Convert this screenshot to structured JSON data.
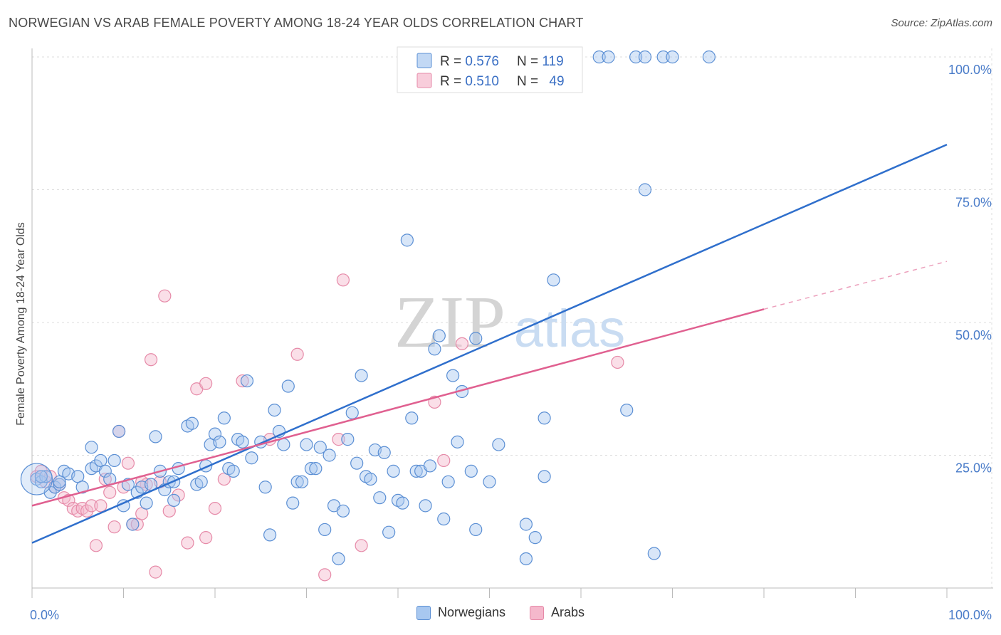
{
  "title": "NORWEGIAN VS ARAB FEMALE POVERTY AMONG 18-24 YEAR OLDS CORRELATION CHART",
  "source": "Source: ZipAtlas.com",
  "watermark": {
    "zip": "ZIP",
    "atlas": "atlas"
  },
  "colors": {
    "norwegians_fill": "#a8c8f0",
    "norwegians_stroke": "#5b8fd4",
    "norwegians_line": "#2f6fcc",
    "arabs_fill": "#f5b8cc",
    "arabs_stroke": "#e68aa8",
    "arabs_line": "#e06090",
    "tick_text": "#4a7cc9",
    "grid": "#dddddd"
  },
  "legend": {
    "rows": [
      {
        "r_label": "R = ",
        "r_value": "0.576",
        "n_label": "N = ",
        "n_value": "119"
      },
      {
        "r_label": "R = ",
        "r_value": "0.510",
        "n_label": "N = ",
        "n_value": "49"
      }
    ]
  },
  "chart_data": {
    "type": "scatter",
    "title": "NORWEGIAN VS ARAB FEMALE POVERTY AMONG 18-24 YEAR OLDS CORRELATION CHART",
    "xlabel": "",
    "ylabel": "Female Poverty Among 18-24 Year Olds",
    "xlim": [
      0,
      100
    ],
    "ylim": [
      0,
      100
    ],
    "x_tick_labels": [
      "0.0%",
      "100.0%"
    ],
    "y_ticks": [
      25,
      50,
      75,
      100
    ],
    "y_tick_labels": [
      "25.0%",
      "50.0%",
      "75.0%",
      "100.0%"
    ],
    "grid": true,
    "legend_position": "top-center",
    "series": [
      {
        "name": "Norwegians",
        "r": 0.576,
        "n": 119,
        "trend": {
          "x0": 0,
          "y0": 8.5,
          "x1": 100,
          "y1": 83.5
        },
        "points": [
          [
            0.5,
            20.5
          ],
          [
            1,
            20
          ],
          [
            1.5,
            21
          ],
          [
            2,
            18
          ],
          [
            2.5,
            19
          ],
          [
            3,
            19.5
          ],
          [
            3.5,
            22
          ],
          [
            4,
            21.5
          ],
          [
            5,
            21
          ],
          [
            5.5,
            19
          ],
          [
            6.5,
            22.5
          ],
          [
            6.5,
            26.5
          ],
          [
            7,
            23
          ],
          [
            7.5,
            24
          ],
          [
            8,
            22
          ],
          [
            8.5,
            20.5
          ],
          [
            9,
            24
          ],
          [
            9.5,
            29.5
          ],
          [
            10,
            15.5
          ],
          [
            10.5,
            19.5
          ],
          [
            11,
            12
          ],
          [
            11.5,
            18
          ],
          [
            12,
            19
          ],
          [
            12.5,
            16
          ],
          [
            13,
            19.5
          ],
          [
            13.5,
            28.5
          ],
          [
            14,
            22
          ],
          [
            14.5,
            18.5
          ],
          [
            15,
            20
          ],
          [
            15.5,
            16.5
          ],
          [
            16,
            22.5
          ],
          [
            17,
            30.5
          ],
          [
            17.5,
            31
          ],
          [
            18,
            19.5
          ],
          [
            18.5,
            20
          ],
          [
            19,
            23
          ],
          [
            19.5,
            27
          ],
          [
            20,
            29
          ],
          [
            20.5,
            27.5
          ],
          [
            21,
            32
          ],
          [
            21.5,
            22.5
          ],
          [
            22,
            22
          ],
          [
            22.5,
            28
          ],
          [
            23,
            27.5
          ],
          [
            23.5,
            39
          ],
          [
            24,
            24.5
          ],
          [
            25,
            27.5
          ],
          [
            25.5,
            19
          ],
          [
            26,
            10
          ],
          [
            26.5,
            33.5
          ],
          [
            27,
            29.5
          ],
          [
            27.5,
            27
          ],
          [
            28,
            38
          ],
          [
            28.5,
            16
          ],
          [
            29,
            20
          ],
          [
            29.5,
            20
          ],
          [
            30,
            27
          ],
          [
            30.5,
            22.5
          ],
          [
            31,
            22.5
          ],
          [
            31.5,
            26.5
          ],
          [
            32,
            11
          ],
          [
            32.5,
            25
          ],
          [
            33,
            15.5
          ],
          [
            33.5,
            5.5
          ],
          [
            34,
            14.5
          ],
          [
            34.5,
            28
          ],
          [
            35,
            33
          ],
          [
            35.5,
            23.5
          ],
          [
            36,
            40
          ],
          [
            36.5,
            21
          ],
          [
            37,
            20.5
          ],
          [
            37.5,
            26
          ],
          [
            38,
            17
          ],
          [
            38.5,
            25.5
          ],
          [
            39,
            10.5
          ],
          [
            39.5,
            22
          ],
          [
            40,
            16.5
          ],
          [
            40.5,
            16
          ],
          [
            41,
            65.5
          ],
          [
            41.5,
            32
          ],
          [
            42,
            22
          ],
          [
            42.5,
            22
          ],
          [
            43,
            15.5
          ],
          [
            43.5,
            23
          ],
          [
            44,
            45
          ],
          [
            44.5,
            47.5
          ],
          [
            45,
            13
          ],
          [
            45.5,
            20
          ],
          [
            46,
            40
          ],
          [
            46.5,
            27.5
          ],
          [
            47,
            37
          ],
          [
            48,
            22
          ],
          [
            48.5,
            47
          ],
          [
            48.5,
            11
          ],
          [
            50,
            20
          ],
          [
            51,
            27
          ],
          [
            54,
            12
          ],
          [
            54,
            5.5
          ],
          [
            55,
            9.5
          ],
          [
            56,
            21
          ],
          [
            57,
            58
          ],
          [
            56,
            32
          ],
          [
            58,
            100
          ],
          [
            62,
            100
          ],
          [
            63,
            100
          ],
          [
            65,
            33.5
          ],
          [
            66,
            100
          ],
          [
            67,
            75
          ],
          [
            67,
            100
          ],
          [
            68,
            6.5
          ],
          [
            69,
            100
          ],
          [
            70,
            100
          ],
          [
            74,
            100
          ],
          [
            43,
            100
          ],
          [
            45,
            100
          ],
          [
            3,
            20
          ],
          [
            1,
            21
          ],
          [
            53,
            100
          ],
          [
            15.5,
            20
          ]
        ]
      },
      {
        "name": "Arabs",
        "r": 0.51,
        "n": 49,
        "trend": {
          "x0": 0,
          "y0": 15.5,
          "x1": 80,
          "y1": 52.5,
          "x2": 100,
          "y2": 61.5
        },
        "points": [
          [
            0.5,
            21
          ],
          [
            1,
            22
          ],
          [
            1.5,
            20
          ],
          [
            2,
            21
          ],
          [
            2.5,
            19
          ],
          [
            3,
            19.5
          ],
          [
            3.5,
            17
          ],
          [
            4,
            16.5
          ],
          [
            4.5,
            15
          ],
          [
            5,
            14.5
          ],
          [
            5.5,
            15
          ],
          [
            6,
            14.5
          ],
          [
            6.5,
            15.5
          ],
          [
            7,
            8
          ],
          [
            7.5,
            15.5
          ],
          [
            8,
            20.5
          ],
          [
            8.5,
            18
          ],
          [
            9,
            11.5
          ],
          [
            9.5,
            29.5
          ],
          [
            10,
            19
          ],
          [
            10.5,
            23.5
          ],
          [
            11,
            12
          ],
          [
            11.5,
            12
          ],
          [
            12,
            14
          ],
          [
            12.5,
            19.5
          ],
          [
            13,
            43
          ],
          [
            13.5,
            3
          ],
          [
            14,
            20
          ],
          [
            14.5,
            55
          ],
          [
            15,
            14.5
          ],
          [
            16,
            17.5
          ],
          [
            17,
            8.5
          ],
          [
            18,
            37.5
          ],
          [
            19,
            38.5
          ],
          [
            19,
            9.5
          ],
          [
            20,
            15
          ],
          [
            21,
            20.5
          ],
          [
            23,
            39
          ],
          [
            26,
            28
          ],
          [
            29,
            44
          ],
          [
            32,
            2.5
          ],
          [
            33.5,
            28
          ],
          [
            34,
            58
          ],
          [
            36,
            8
          ],
          [
            44,
            35
          ],
          [
            45,
            24
          ],
          [
            47,
            46
          ],
          [
            64,
            42.5
          ],
          [
            12,
            20
          ]
        ]
      }
    ]
  },
  "bottom_legend": [
    {
      "label": "Norwegians"
    },
    {
      "label": "Arabs"
    }
  ]
}
